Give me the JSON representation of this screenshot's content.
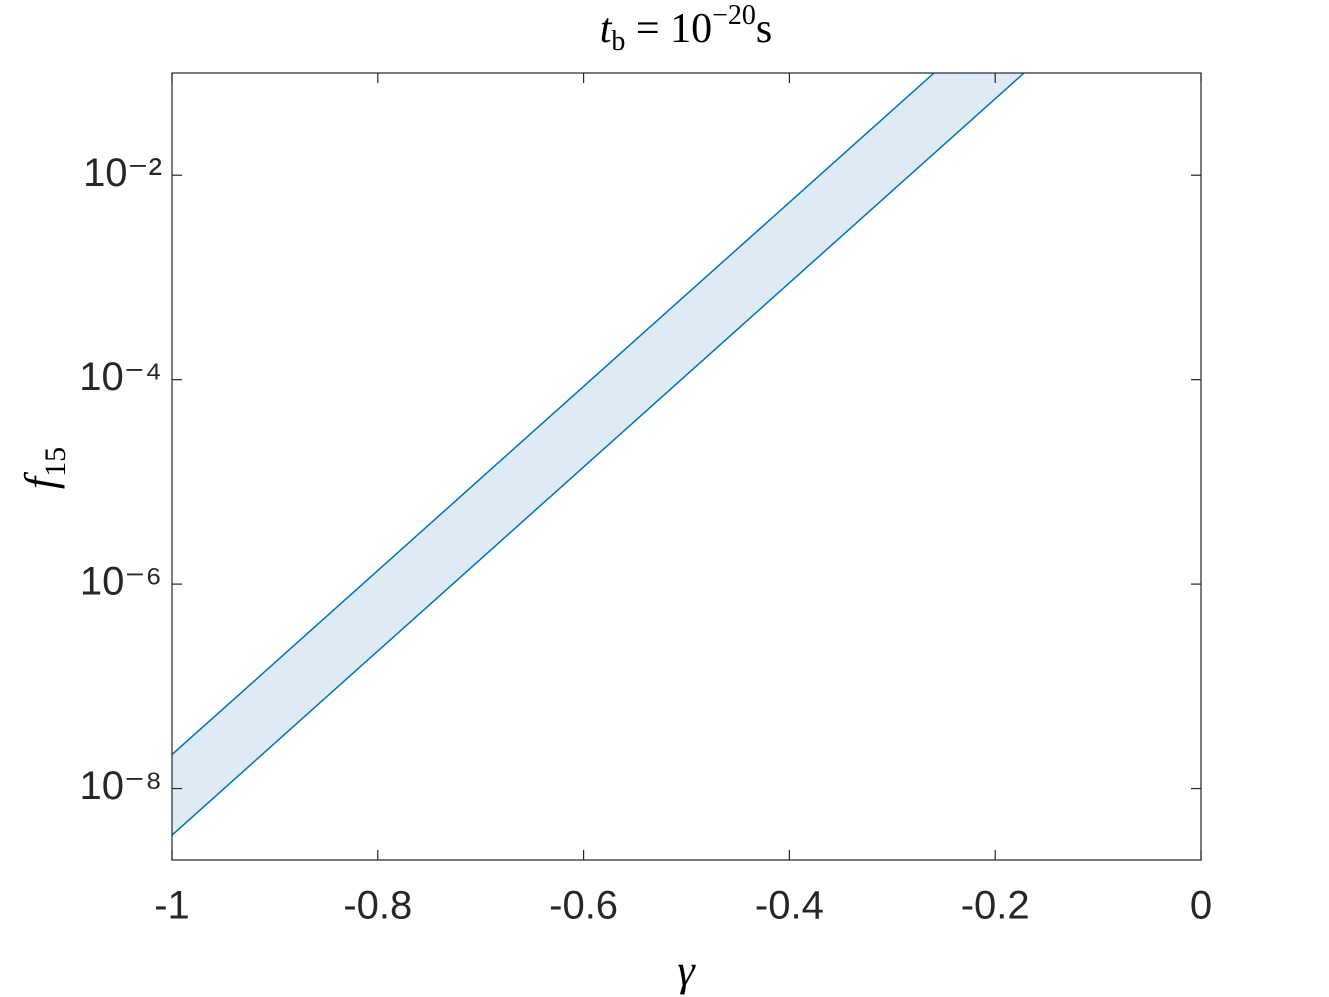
{
  "chart_data": {
    "type": "band",
    "title": {
      "base": "t",
      "sub": "b",
      "mid": " = 10",
      "sup": "−20",
      "unit": "s"
    },
    "x_label": "γ",
    "y_label": {
      "base": "f",
      "sub": "15"
    },
    "series": [
      {
        "x": [
          -1,
          -0.2595
        ],
        "values": [
          2.15e-08,
          0.1
        ],
        "color": "#0072bd"
      },
      {
        "x": [
          -1,
          -0.172
        ],
        "values": [
          3.5e-09,
          0.1
        ],
        "color": "#0072bd"
      }
    ],
    "fill_color": "#deebf5",
    "xlim": [
      -1,
      0
    ],
    "xticks": [
      -1,
      -0.8,
      -0.6,
      -0.4,
      -0.2,
      0
    ],
    "ylim": [
      2e-09,
      0.1
    ],
    "log_y": true,
    "yticks": [
      {
        "value": 0.01,
        "label": "10⁻²"
      },
      {
        "value": 0.0001,
        "label": "10⁻⁴"
      },
      {
        "value": 1e-06,
        "label": "10⁻⁶"
      },
      {
        "value": 1e-08,
        "label": "10⁻⁸"
      }
    ],
    "grid": false
  }
}
